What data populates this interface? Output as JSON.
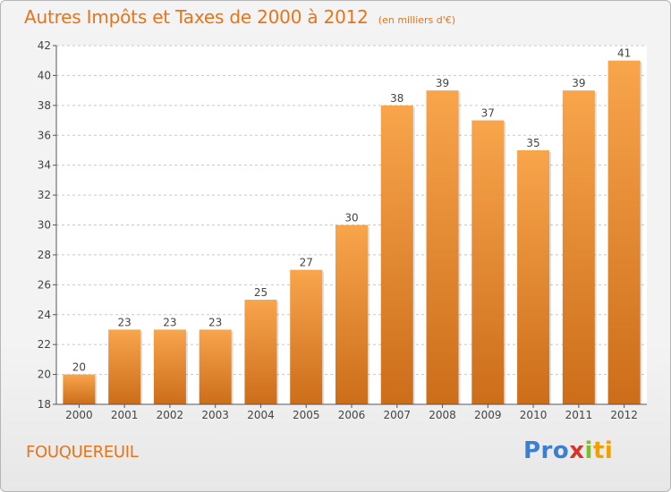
{
  "header": {
    "title": "Autres Impôts et Taxes de 2000 à 2012",
    "subtitle": "(en milliers d'€)"
  },
  "footer": {
    "commune": "FOUQUEREUIL",
    "logo_parts": [
      "Pro",
      "x",
      "i",
      "ti"
    ]
  },
  "colors": {
    "accent": "#e8741a",
    "bar_top": "#f8a54c",
    "bar_bottom": "#cc6d1a",
    "axis": "#555555",
    "grid": "#c8c8c8"
  },
  "chart_data": {
    "type": "bar",
    "categories": [
      "2000",
      "2001",
      "2002",
      "2003",
      "2004",
      "2005",
      "2006",
      "2007",
      "2008",
      "2009",
      "2010",
      "2011",
      "2012"
    ],
    "values": [
      20,
      23,
      23,
      23,
      25,
      27,
      30,
      38,
      39,
      37,
      35,
      39,
      41
    ],
    "title": "Autres Impôts et Taxes de 2000 à 2012",
    "xlabel": "",
    "ylabel": "",
    "ylim": [
      18,
      42
    ],
    "yticks": [
      18,
      20,
      22,
      24,
      26,
      28,
      30,
      32,
      34,
      36,
      38,
      40,
      42
    ],
    "grid": true,
    "data_labels": true
  }
}
